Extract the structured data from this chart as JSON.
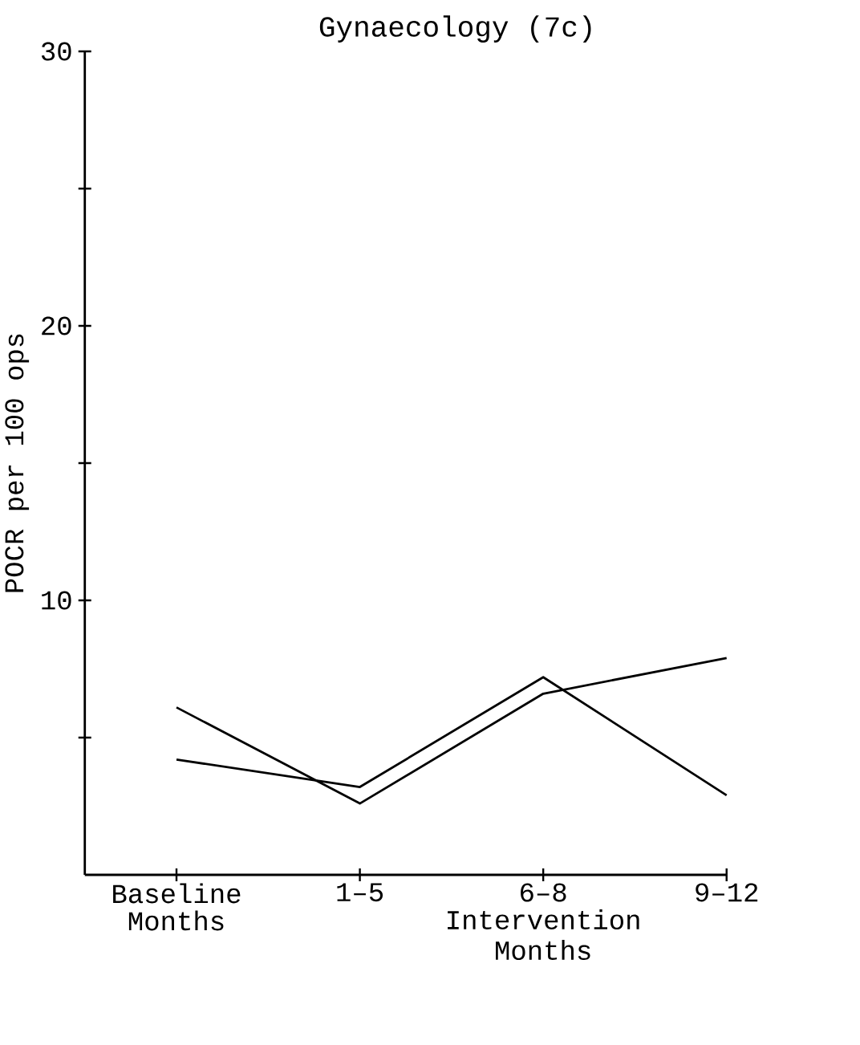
{
  "chart_data": {
    "type": "line",
    "title": "Gynaecology (7c)",
    "ylabel": "POCR per 100 ops",
    "xlabel": "Intervention Months",
    "categories": [
      "Baseline Months",
      "1–5",
      "6–8",
      "9–12"
    ],
    "series": [
      {
        "color": "#000000",
        "values": [
          6.1,
          2.6,
          6.6,
          7.9
        ]
      },
      {
        "color": "#000000",
        "values": [
          4.2,
          3.2,
          7.2,
          2.9
        ]
      }
    ],
    "ylim": [
      0,
      30
    ],
    "yticks": [
      {
        "value": 5,
        "label": null
      },
      10,
      {
        "value": 15,
        "label": null
      },
      20,
      {
        "value": 25,
        "label": null
      },
      30
    ]
  }
}
